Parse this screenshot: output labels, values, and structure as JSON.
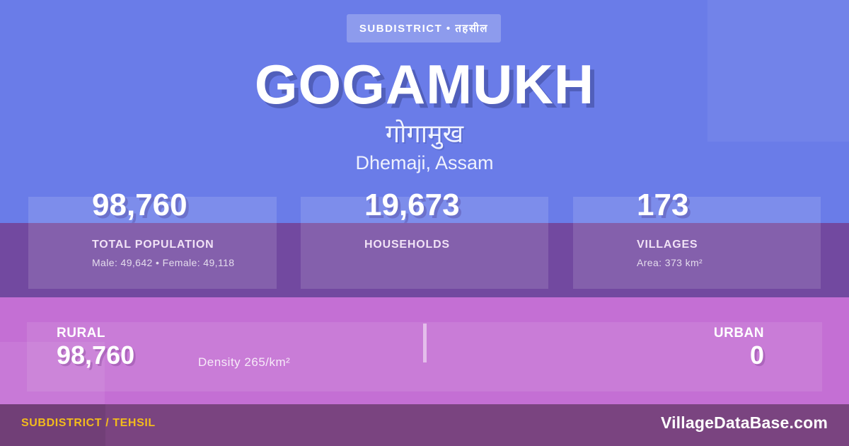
{
  "colors": {
    "background_blue": "#6a7ce8",
    "band_purple": "#7249a0",
    "band_pink": "#c46fd4",
    "footer_purple": "#7a4480",
    "accent_yellow": "#f2bb1c",
    "text_white": "#ffffff"
  },
  "badge": {
    "label": "SUBDISTRICT • तहसील"
  },
  "header": {
    "title": "GOGAMUKH",
    "title_native": "गोगामुख",
    "location": "Dhemaji, Assam"
  },
  "stats": [
    {
      "value": "98,760",
      "label": "TOTAL POPULATION",
      "detail": "Male: 49,642 • Female: 49,118"
    },
    {
      "value": "19,673",
      "label": "HOUSEHOLDS",
      "detail": ""
    },
    {
      "value": "173",
      "label": "VILLAGES",
      "detail": "Area: 373 km²"
    }
  ],
  "rural_urban": {
    "rural_label": "RURAL",
    "rural_value": "98,760",
    "density": "Density 265/km²",
    "urban_label": "URBAN",
    "urban_value": "0"
  },
  "footer": {
    "left": "SUBDISTRICT / TEHSIL",
    "right": "VillageDataBase.com"
  }
}
